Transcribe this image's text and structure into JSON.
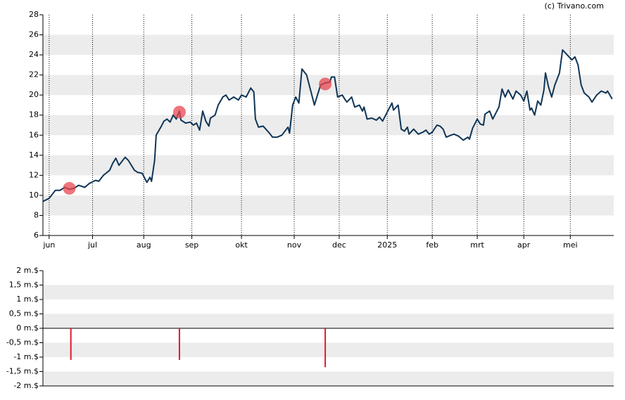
{
  "chart_data": [
    {
      "type": "line",
      "watermark": "(c) Trivano.com",
      "xlim": [
        0,
        368
      ],
      "ylim": [
        6,
        28
      ],
      "yticks": [
        6,
        8,
        10,
        12,
        14,
        16,
        18,
        20,
        22,
        24,
        26,
        28
      ],
      "grid": true,
      "xticks": [
        {
          "value": 4,
          "label": "jun"
        },
        {
          "value": 32,
          "label": "jul"
        },
        {
          "value": 65,
          "label": "aug"
        },
        {
          "value": 96,
          "label": "sep"
        },
        {
          "value": 128,
          "label": "okt"
        },
        {
          "value": 162,
          "label": "nov"
        },
        {
          "value": 191,
          "label": "dec"
        },
        {
          "value": 222,
          "label": "2025"
        },
        {
          "value": 251,
          "label": "feb"
        },
        {
          "value": 280,
          "label": "mrt"
        },
        {
          "value": 310,
          "label": "apr"
        },
        {
          "value": 340,
          "label": "mei"
        }
      ],
      "x": [
        0,
        4,
        8,
        11,
        14,
        17,
        20,
        23,
        27,
        30,
        34,
        36,
        39,
        43,
        45,
        47,
        49,
        53,
        55,
        59,
        61,
        64,
        67,
        69,
        70,
        72,
        73,
        76,
        78,
        80,
        82,
        84,
        86,
        88,
        89,
        92,
        95,
        97,
        99,
        101,
        103,
        105,
        107,
        108,
        111,
        113,
        116,
        118,
        120,
        123,
        126,
        128,
        131,
        134,
        136,
        137,
        139,
        142,
        146,
        148,
        151,
        154,
        157,
        158,
        159,
        161,
        163,
        165,
        167,
        170,
        173,
        175,
        177,
        179,
        182,
        185,
        186,
        188,
        190,
        193,
        195,
        196,
        199,
        201,
        204,
        206,
        207,
        209,
        212,
        215,
        217,
        219,
        221,
        223,
        225,
        226,
        229,
        231,
        233,
        235,
        236,
        239,
        242,
        245,
        247,
        249,
        251,
        254,
        256,
        258,
        260,
        263,
        265,
        268,
        271,
        274,
        275,
        277,
        280,
        282,
        284,
        285,
        288,
        290,
        293,
        294,
        296,
        298,
        300,
        303,
        305,
        308,
        310,
        312,
        314,
        315,
        317,
        319,
        321,
        323,
        324,
        326,
        328,
        330,
        332,
        333,
        335,
        338,
        341,
        343,
        345,
        347,
        349,
        352,
        354,
        357,
        360,
        363,
        364,
        367
      ],
      "series": [
        {
          "color": "#0f3557",
          "values": [
            9.4,
            9.7,
            10.5,
            10.5,
            10.8,
            10.6,
            10.7,
            11.0,
            10.8,
            11.2,
            11.5,
            11.4,
            12.0,
            12.5,
            13.2,
            13.7,
            13.0,
            13.8,
            13.5,
            12.5,
            12.3,
            12.2,
            11.3,
            11.8,
            11.4,
            13.5,
            16.0,
            16.8,
            17.4,
            17.6,
            17.3,
            18.0,
            17.6,
            18.4,
            17.5,
            17.2,
            17.3,
            17.0,
            17.2,
            16.5,
            18.4,
            17.4,
            16.9,
            17.7,
            18.0,
            19.0,
            19.8,
            20.0,
            19.5,
            19.8,
            19.5,
            20.0,
            19.8,
            20.7,
            20.3,
            17.6,
            16.8,
            16.9,
            16.2,
            15.8,
            15.8,
            16.0,
            16.6,
            16.8,
            16.2,
            19.0,
            19.8,
            19.2,
            22.6,
            22.0,
            20.2,
            19.0,
            20.0,
            21.0,
            21.2,
            21.3,
            21.8,
            21.8,
            19.8,
            20.0,
            19.5,
            19.3,
            19.8,
            18.8,
            19.0,
            18.4,
            18.8,
            17.6,
            17.7,
            17.5,
            17.8,
            17.4,
            18.0,
            18.6,
            19.2,
            18.5,
            19.0,
            16.6,
            16.4,
            16.8,
            16.1,
            16.6,
            16.1,
            16.3,
            16.5,
            16.1,
            16.3,
            17.0,
            16.9,
            16.6,
            15.8,
            16.0,
            16.1,
            15.9,
            15.5,
            15.8,
            15.6,
            16.7,
            17.6,
            17.1,
            17.0,
            18.1,
            18.4,
            17.6,
            18.5,
            18.8,
            20.6,
            19.8,
            20.5,
            19.6,
            20.4,
            20.0,
            19.4,
            20.4,
            18.5,
            18.7,
            18.0,
            19.4,
            19.0,
            20.5,
            22.2,
            20.8,
            19.8,
            21.0,
            21.8,
            22.2,
            24.5,
            24.0,
            23.5,
            23.8,
            23.0,
            21.0,
            20.2,
            19.8,
            19.3,
            20.0,
            20.4,
            20.2,
            20.4,
            19.6
          ]
        }
      ],
      "markers": {
        "color": "#e8474f",
        "x": [
          17,
          88,
          182
        ],
        "values": [
          10.7,
          18.3,
          21.1
        ]
      }
    },
    {
      "type": "bar",
      "color": "#e0182d",
      "xlim": [
        0,
        368
      ],
      "ylim": [
        -2,
        2
      ],
      "grid": true,
      "yticks": [
        {
          "value": -2,
          "label": "-2 m.$"
        },
        {
          "value": -1.5,
          "label": "-1,5 m.$"
        },
        {
          "value": -1,
          "label": "-1 m.$"
        },
        {
          "value": -0.5,
          "label": "-0,5 m.$"
        },
        {
          "value": 0,
          "label": "0 m.$"
        },
        {
          "value": 0.5,
          "label": "0,5 m.$"
        },
        {
          "value": 1,
          "label": "1 m.$"
        },
        {
          "value": 1.5,
          "label": "1,5 m.$"
        },
        {
          "value": 2,
          "label": "2 m.$"
        }
      ],
      "x": [
        18,
        88,
        182
      ],
      "values": [
        -1.1,
        -1.1,
        -1.35
      ]
    }
  ]
}
